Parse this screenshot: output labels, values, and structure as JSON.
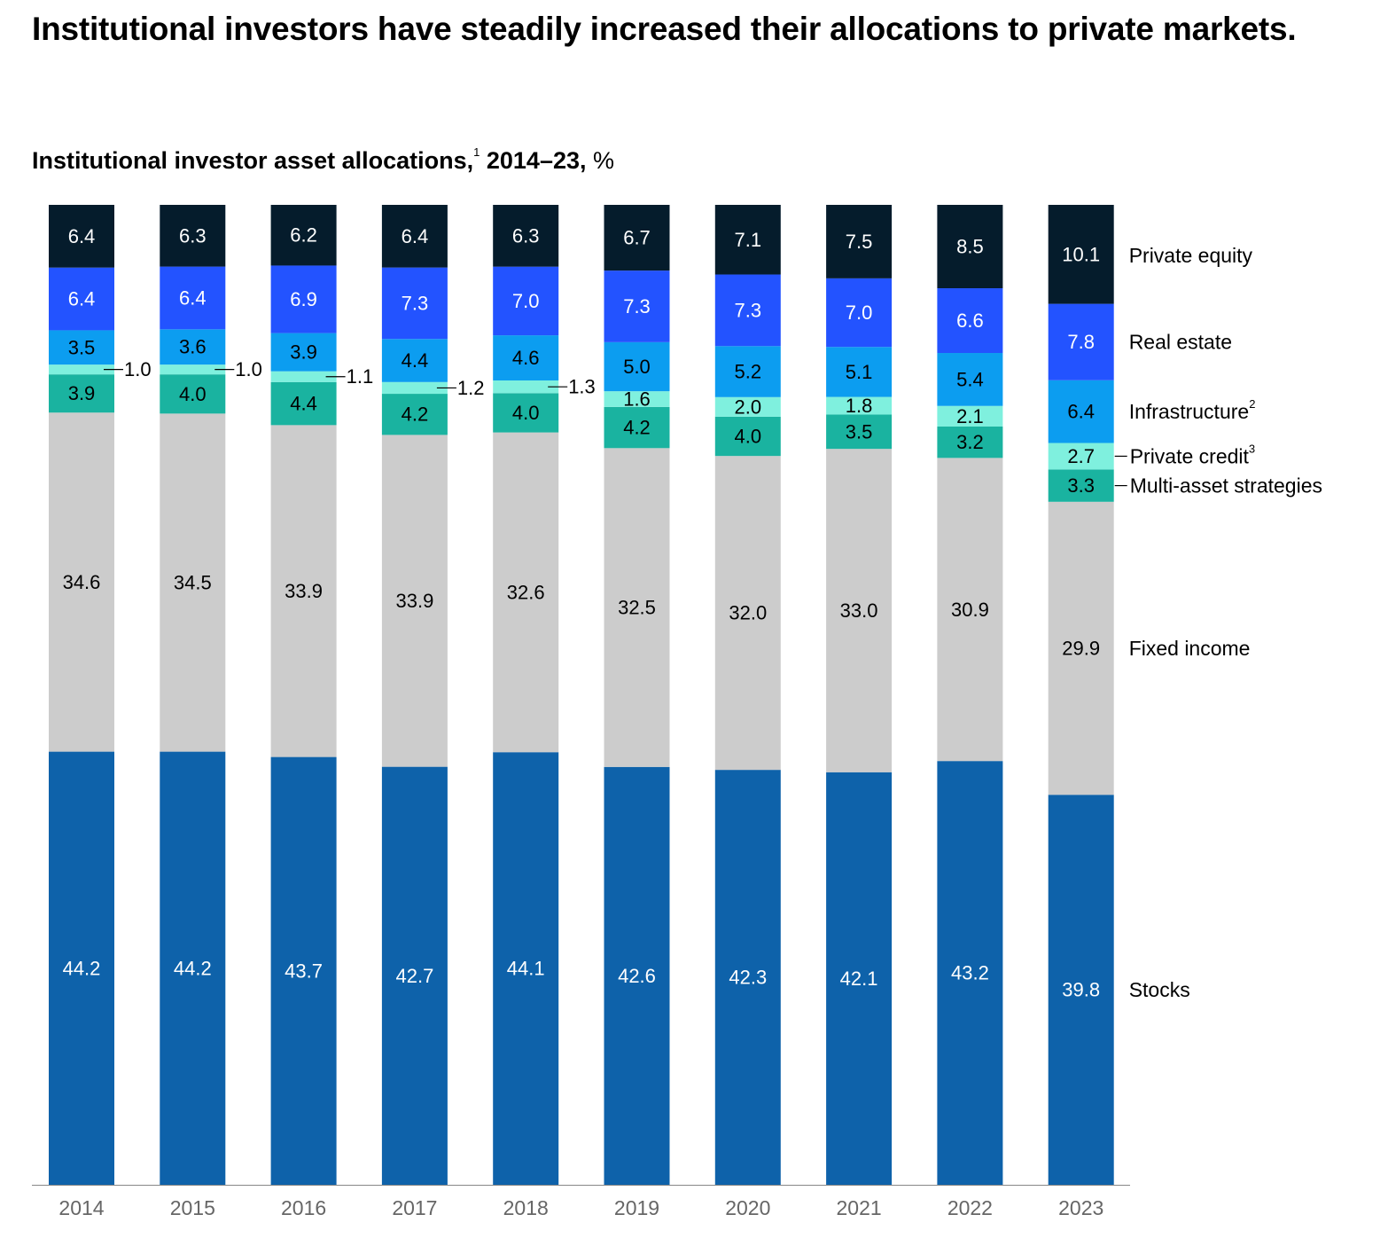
{
  "title": "Institutional investors have steadily increased their allocations to private markets.",
  "subtitle": {
    "main": "Institutional investor asset allocations,",
    "footnote": "1",
    "years": "2014–23,",
    "unit": "%"
  },
  "colors": {
    "Stocks": "#0e62aa",
    "Fixed income": "#cccccc",
    "Multi-asset strategies": "#1ab3a0",
    "Private credit": "#7ff0de",
    "Infrastructure": "#0c9df0",
    "Real estate": "#2353ff",
    "Private equity": "#051c2c"
  },
  "label_colors": {
    "Stocks": "#ffffff",
    "Fixed income": "#000000",
    "Multi-asset strategies": "#000000",
    "Private credit": "#000000",
    "Infrastructure": "#000000",
    "Real estate": "#ffffff",
    "Private equity": "#ffffff"
  },
  "chart_data": {
    "type": "bar",
    "stacked": true,
    "categories": [
      "2014",
      "2015",
      "2016",
      "2017",
      "2018",
      "2019",
      "2020",
      "2021",
      "2022",
      "2023"
    ],
    "series": [
      {
        "name": "Stocks",
        "footnote": "",
        "values": [
          44.2,
          44.2,
          43.7,
          42.7,
          44.1,
          42.6,
          42.3,
          42.1,
          43.2,
          39.8
        ]
      },
      {
        "name": "Fixed income",
        "footnote": "",
        "values": [
          34.6,
          34.5,
          33.9,
          33.9,
          32.6,
          32.5,
          32.0,
          33.0,
          30.9,
          29.9
        ]
      },
      {
        "name": "Multi-asset strategies",
        "footnote": "",
        "values": [
          3.9,
          4.0,
          4.4,
          4.2,
          4.0,
          4.2,
          4.0,
          3.5,
          3.2,
          3.3
        ]
      },
      {
        "name": "Private credit",
        "footnote": "3",
        "values": [
          1.0,
          1.0,
          1.1,
          1.2,
          1.3,
          1.6,
          2.0,
          1.8,
          2.1,
          2.7
        ]
      },
      {
        "name": "Infrastructure",
        "footnote": "2",
        "values": [
          3.5,
          3.6,
          3.9,
          4.4,
          4.6,
          5.0,
          5.2,
          5.1,
          5.4,
          6.4
        ]
      },
      {
        "name": "Real estate",
        "footnote": "",
        "values": [
          6.4,
          6.4,
          6.9,
          7.3,
          7.0,
          7.3,
          7.3,
          7.0,
          6.6,
          7.8
        ]
      },
      {
        "name": "Private equity",
        "footnote": "",
        "values": [
          6.4,
          6.3,
          6.2,
          6.4,
          6.3,
          6.7,
          7.1,
          7.5,
          8.5,
          10.1
        ]
      }
    ],
    "ylim": [
      0,
      100
    ],
    "grid": false,
    "legend_position": "right, labels beside the 2023 bar"
  }
}
